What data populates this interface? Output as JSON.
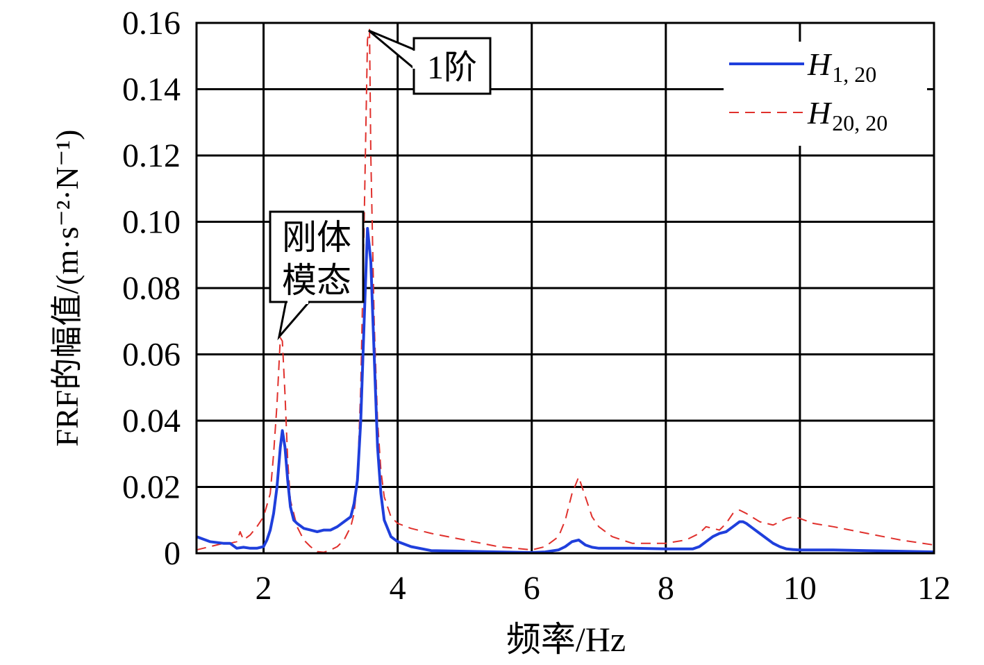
{
  "chart_data": {
    "type": "line",
    "xlabel": "频率/Hz",
    "ylabel": "FRF的幅值/(m·s⁻²·N⁻¹)",
    "xlim": [
      1,
      12
    ],
    "ylim": [
      0,
      0.16
    ],
    "xticks": [
      2,
      4,
      6,
      8,
      10,
      12
    ],
    "yticks": [
      0,
      0.02,
      0.04,
      0.06,
      0.08,
      0.1,
      0.12,
      0.14,
      0.16
    ],
    "ytick_labels": [
      "0",
      "0.02",
      "0.04",
      "0.06",
      "0.08",
      "0.10",
      "0.12",
      "0.14",
      "0.16"
    ],
    "grid": true,
    "legend_position": "top-right",
    "series": [
      {
        "name": "H1, 20",
        "name_main": "H",
        "name_sub": "1, 20",
        "color": "#1f3fdc",
        "style": "solid",
        "x": [
          1.0,
          1.2,
          1.4,
          1.5,
          1.6,
          1.7,
          1.8,
          1.9,
          2.0,
          2.05,
          2.1,
          2.15,
          2.2,
          2.25,
          2.28,
          2.32,
          2.36,
          2.4,
          2.45,
          2.5,
          2.6,
          2.7,
          2.8,
          2.9,
          3.0,
          3.1,
          3.2,
          3.3,
          3.35,
          3.4,
          3.45,
          3.5,
          3.55,
          3.6,
          3.65,
          3.7,
          3.75,
          3.8,
          3.9,
          4.0,
          4.2,
          4.5,
          5.0,
          5.5,
          6.0,
          6.2,
          6.4,
          6.5,
          6.6,
          6.7,
          6.8,
          6.9,
          7.0,
          7.5,
          8.0,
          8.4,
          8.5,
          8.6,
          8.7,
          8.8,
          8.9,
          9.0,
          9.1,
          9.15,
          9.2,
          9.3,
          9.4,
          9.5,
          9.6,
          9.7,
          9.8,
          9.9,
          10.0,
          10.5,
          11.0,
          11.5,
          12.0
        ],
        "y": [
          0.005,
          0.0035,
          0.003,
          0.003,
          0.0015,
          0.0018,
          0.0015,
          0.0015,
          0.002,
          0.004,
          0.007,
          0.012,
          0.02,
          0.032,
          0.037,
          0.032,
          0.022,
          0.014,
          0.01,
          0.009,
          0.0075,
          0.007,
          0.0065,
          0.007,
          0.007,
          0.008,
          0.0095,
          0.011,
          0.015,
          0.022,
          0.04,
          0.07,
          0.098,
          0.088,
          0.06,
          0.032,
          0.018,
          0.01,
          0.005,
          0.0035,
          0.002,
          0.0008,
          0.0006,
          0.0004,
          0.0002,
          0.0004,
          0.001,
          0.002,
          0.0035,
          0.004,
          0.0025,
          0.0018,
          0.0015,
          0.0015,
          0.0013,
          0.0013,
          0.002,
          0.0035,
          0.005,
          0.006,
          0.0065,
          0.008,
          0.0095,
          0.0095,
          0.009,
          0.0075,
          0.006,
          0.0045,
          0.003,
          0.002,
          0.0013,
          0.0011,
          0.001,
          0.001,
          0.0008,
          0.0006,
          0.0004
        ]
      },
      {
        "name": "H20, 20",
        "name_main": "H",
        "name_sub": "20, 20",
        "color": "#e0302c",
        "style": "dashed",
        "x": [
          1.0,
          1.1,
          1.2,
          1.3,
          1.4,
          1.5,
          1.6,
          1.65,
          1.7,
          1.8,
          1.9,
          2.0,
          2.1,
          2.15,
          2.2,
          2.25,
          2.28,
          2.32,
          2.36,
          2.4,
          2.5,
          2.6,
          2.7,
          2.8,
          2.9,
          3.0,
          3.1,
          3.2,
          3.3,
          3.35,
          3.4,
          3.45,
          3.5,
          3.55,
          3.58,
          3.6,
          3.65,
          3.7,
          3.75,
          3.8,
          3.9,
          4.0,
          4.2,
          4.5,
          5.0,
          5.5,
          6.0,
          6.2,
          6.4,
          6.5,
          6.6,
          6.7,
          6.8,
          6.9,
          7.0,
          7.2,
          7.5,
          8.0,
          8.3,
          8.5,
          8.6,
          8.7,
          8.8,
          8.9,
          9.0,
          9.1,
          9.2,
          9.4,
          9.6,
          9.8,
          9.9,
          10.0,
          10.2,
          10.5,
          11.0,
          11.5,
          12.0
        ],
        "y": [
          0.001,
          0.0015,
          0.002,
          0.0025,
          0.003,
          0.003,
          0.0035,
          0.0065,
          0.004,
          0.0055,
          0.008,
          0.011,
          0.018,
          0.03,
          0.045,
          0.065,
          0.064,
          0.048,
          0.028,
          0.016,
          0.008,
          0.004,
          0.002,
          0.0005,
          0.0003,
          0.001,
          0.002,
          0.004,
          0.008,
          0.012,
          0.022,
          0.05,
          0.1,
          0.155,
          0.158,
          0.12,
          0.07,
          0.04,
          0.025,
          0.017,
          0.011,
          0.009,
          0.0075,
          0.006,
          0.004,
          0.002,
          0.001,
          0.002,
          0.005,
          0.01,
          0.018,
          0.023,
          0.017,
          0.011,
          0.008,
          0.005,
          0.003,
          0.003,
          0.004,
          0.006,
          0.008,
          0.0075,
          0.007,
          0.009,
          0.012,
          0.013,
          0.012,
          0.0095,
          0.0085,
          0.0105,
          0.011,
          0.0105,
          0.009,
          0.008,
          0.006,
          0.004,
          0.0025
        ]
      }
    ],
    "annotations": [
      {
        "text": "1阶",
        "target_x": 3.58,
        "target_y": 0.158
      },
      {
        "text_line1": "刚体",
        "text_line2": "模态",
        "target_x": 2.28,
        "target_y": 0.065
      }
    ]
  }
}
